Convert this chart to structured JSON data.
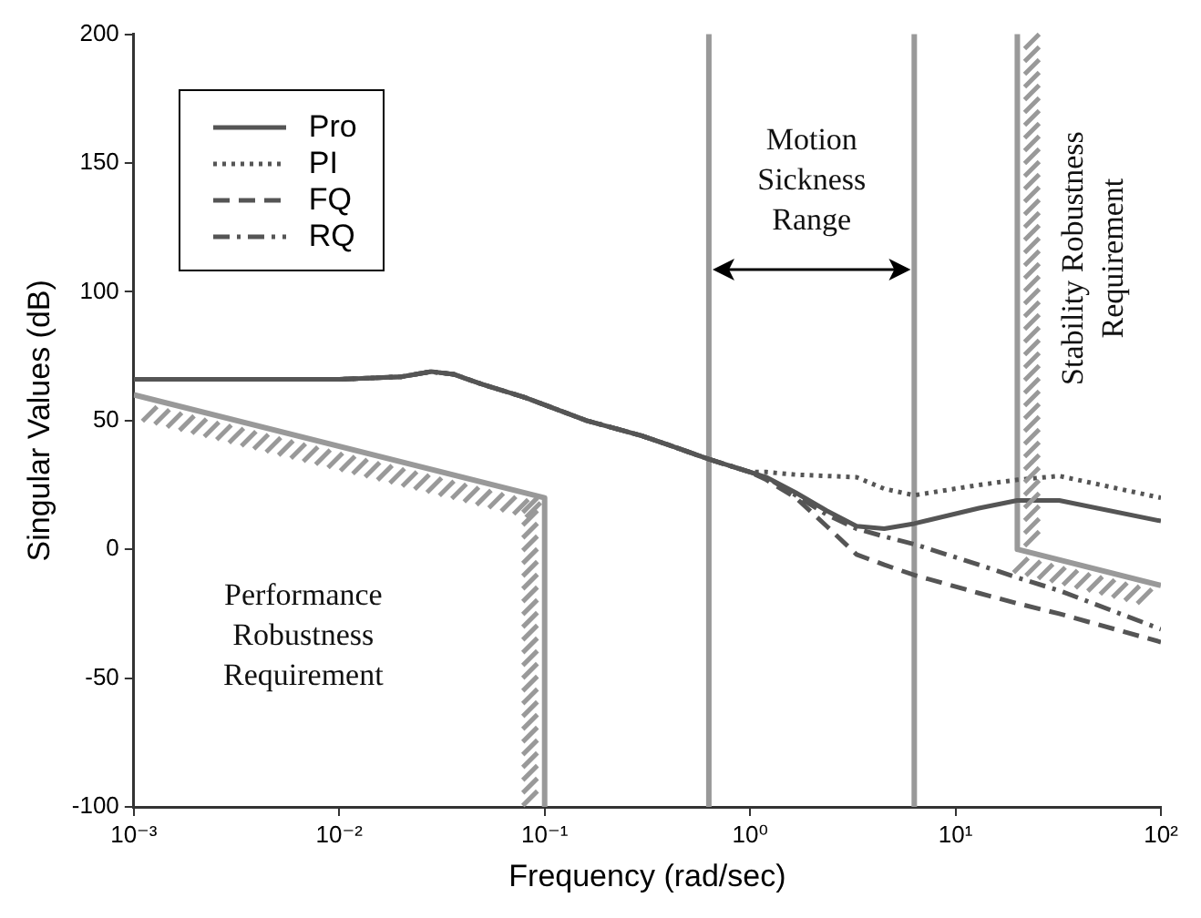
{
  "chart_data": {
    "type": "line",
    "xlabel": "Frequency (rad/sec)",
    "ylabel": "Singular Values (dB)",
    "x": [
      0.001,
      0.002,
      0.005,
      0.01,
      0.02,
      0.028,
      0.036,
      0.05,
      0.08,
      0.16,
      0.3,
      0.42,
      0.63,
      1,
      1.2,
      1.67,
      2.36,
      3.3,
      4.5,
      6.3,
      13,
      20,
      32,
      100
    ],
    "series": [
      {
        "name": "Pro",
        "color": "#555555",
        "line_style": "solid",
        "values": [
          66,
          66,
          66,
          66,
          67,
          69,
          68,
          64,
          59,
          50,
          44,
          40,
          35,
          30,
          28,
          22,
          15,
          9,
          8,
          10,
          16,
          19,
          19,
          11
        ]
      },
      {
        "name": "PI",
        "color": "#555555",
        "line_style": "dotted",
        "values": [
          66,
          66,
          66,
          66,
          67,
          69,
          68,
          64,
          59,
          50,
          44,
          40,
          35,
          30,
          30,
          29,
          28.5,
          28,
          23.5,
          21,
          25,
          27,
          28.5,
          20
        ]
      },
      {
        "name": "FQ",
        "color": "#555555",
        "line_style": "dashed",
        "values": [
          66,
          66,
          66,
          66,
          67,
          69,
          68,
          64,
          59,
          50,
          44,
          40,
          35,
          30,
          27,
          20,
          9,
          -2,
          -6,
          -10,
          -17,
          -21,
          -25,
          -36
        ]
      },
      {
        "name": "RQ",
        "color": "#555555",
        "line_style": "dashdot",
        "values": [
          66,
          66,
          66,
          66,
          67,
          69,
          68,
          64,
          59,
          50,
          44,
          40,
          35,
          30,
          28,
          21,
          13.5,
          8,
          5,
          2,
          -6,
          -11,
          -16,
          -31
        ]
      },
      {
        "color": "#999999",
        "line_style": "solid",
        "x": [
          0.001,
          0.1,
          0.1
        ],
        "values": [
          60,
          20,
          -100
        ]
      },
      {
        "color": "#999999",
        "line_style": "solid",
        "x": [
          20,
          20,
          100
        ],
        "values": [
          200,
          0,
          -14
        ]
      }
    ],
    "ref_lines": [
      {
        "axis": "x",
        "value": 0.63,
        "color": "#999999"
      },
      {
        "axis": "x",
        "value": 6.3,
        "color": "#999999"
      }
    ],
    "annotations": [
      "Performance Robustness Requirement",
      "Motion Sickness Range",
      "Stability Robustness Requirement"
    ],
    "log": "x",
    "xlim": [
      0.001,
      100
    ],
    "xticks": [
      {
        "value": 0.001,
        "label": "10⁻³"
      },
      {
        "value": 0.01,
        "label": "10⁻²"
      },
      {
        "value": 0.1,
        "label": "10⁻¹"
      },
      {
        "value": 1,
        "label": "10⁰"
      },
      {
        "value": 10,
        "label": "10¹"
      },
      {
        "value": 100,
        "label": "10²"
      }
    ],
    "ylim": [
      -100,
      200
    ],
    "yticks": [
      -100,
      -50,
      0,
      50,
      100,
      150,
      200
    ],
    "grid": false,
    "legend": "top left"
  }
}
